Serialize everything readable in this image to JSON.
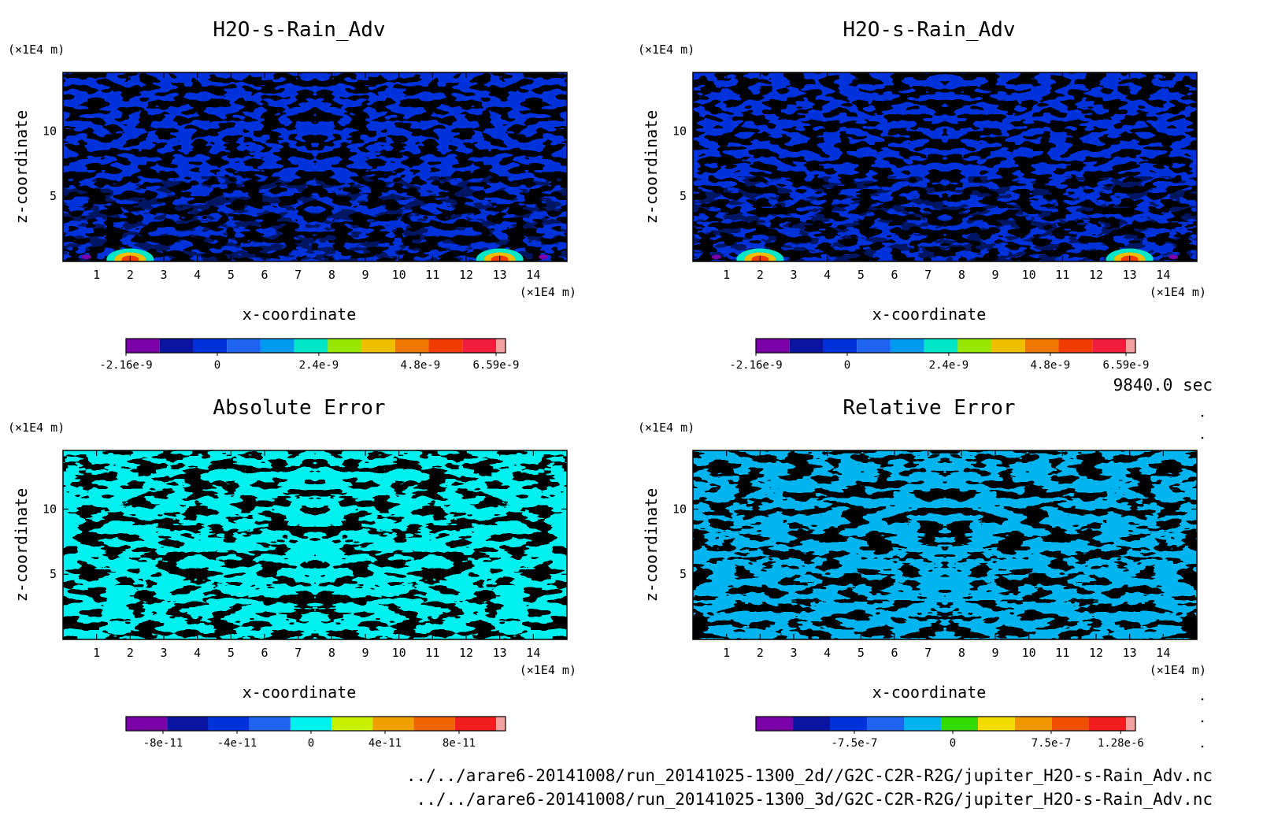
{
  "time_label": "9840.0 sec",
  "files": [
    "../../arare6-20141008/run_20141025-1300_2d//G2C-C2R-R2G/jupiter_H2O-s-Rain_Adv.nc",
    "../../arare6-20141008/run_20141025-1300_3d/G2C-C2R-R2G/jupiter_H2O-s-Rain_Adv.nc"
  ],
  "chart_data": [
    {
      "type": "heatmap",
      "title": "H2O-s-Rain_Adv",
      "xlabel": "x-coordinate",
      "ylabel": "z-coordinate",
      "x_unit": "(×1E4 m)",
      "y_unit": "(×1E4 m)",
      "xlim": [
        0,
        15
      ],
      "ylim": [
        0,
        14.5
      ],
      "x_ticks": [
        1,
        2,
        3,
        4,
        5,
        6,
        7,
        8,
        9,
        10,
        11,
        12,
        13,
        14
      ],
      "y_ticks": [
        5,
        10
      ],
      "pattern": "mirror-symmetric blue field with two red peaks near z=0 at x≈2 and x≈13",
      "colorbar": {
        "colors": [
          "#7a00a8",
          "#0a14a0",
          "#0032dc",
          "#1e64f0",
          "#009bf0",
          "#00e6c8",
          "#96e600",
          "#f0be00",
          "#f07800",
          "#f03c00",
          "#f01e3c",
          "#f5a0a0"
        ],
        "labels": [
          "-2.16e-9",
          "0",
          "2.4e-9",
          "4.8e-9",
          "6.59e-9"
        ],
        "label_positions": [
          -2.16e-09,
          0,
          2.4e-09,
          4.8e-09,
          6.59e-09
        ],
        "range": [
          -2.16e-09,
          6.59e-09
        ]
      },
      "legend_position": "bottom"
    },
    {
      "type": "heatmap",
      "title": "H2O-s-Rain_Adv",
      "xlabel": "x-coordinate",
      "ylabel": "z-coordinate",
      "x_unit": "(×1E4 m)",
      "y_unit": "(×1E4 m)",
      "xlim": [
        0,
        15
      ],
      "ylim": [
        0,
        14.5
      ],
      "x_ticks": [
        1,
        2,
        3,
        4,
        5,
        6,
        7,
        8,
        9,
        10,
        11,
        12,
        13,
        14
      ],
      "y_ticks": [
        5,
        10
      ],
      "pattern": "mirror-symmetric blue field with two red peaks near z=0 at x≈2 and x≈13",
      "colorbar": {
        "colors": [
          "#7a00a8",
          "#0a14a0",
          "#0032dc",
          "#1e64f0",
          "#009bf0",
          "#00e6c8",
          "#96e600",
          "#f0be00",
          "#f07800",
          "#f03c00",
          "#f01e3c",
          "#f5a0a0"
        ],
        "labels": [
          "-2.16e-9",
          "0",
          "2.4e-9",
          "4.8e-9",
          "6.59e-9"
        ],
        "label_positions": [
          -2.16e-09,
          0,
          2.4e-09,
          4.8e-09,
          6.59e-09
        ],
        "range": [
          -2.16e-09,
          6.59e-09
        ]
      },
      "legend_position": "bottom"
    },
    {
      "type": "heatmap",
      "title": "Absolute Error",
      "xlabel": "x-coordinate",
      "ylabel": "z-coordinate",
      "x_unit": "(×1E4 m)",
      "y_unit": "(×1E4 m)",
      "xlim": [
        0,
        15
      ],
      "ylim": [
        0,
        14.5
      ],
      "x_ticks": [
        1,
        2,
        3,
        4,
        5,
        6,
        7,
        8,
        9,
        10,
        11,
        12,
        13,
        14
      ],
      "y_ticks": [
        5,
        10
      ],
      "pattern": "interleaved cyan and yellow-green bands",
      "colorbar": {
        "colors": [
          "#7a00a8",
          "#0a14a0",
          "#0032dc",
          "#1e64f0",
          "#00f0f0",
          "#c8f000",
          "#f0a000",
          "#f06400",
          "#f01e1e",
          "#f5a0a0"
        ],
        "labels": [
          "-8e-11",
          "-4e-11",
          "0",
          "4e-11",
          "8e-11"
        ],
        "label_positions": [
          -8e-11,
          -4e-11,
          0,
          4e-11,
          8e-11
        ],
        "range": [
          -1e-10,
          1e-10
        ]
      },
      "legend_position": "bottom"
    },
    {
      "type": "heatmap",
      "title": "Relative Error",
      "xlabel": "x-coordinate",
      "ylabel": "z-coordinate",
      "x_unit": "(×1E4 m)",
      "y_unit": "(×1E4 m)",
      "xlim": [
        0,
        15
      ],
      "ylim": [
        0,
        14.5
      ],
      "x_ticks": [
        1,
        2,
        3,
        4,
        5,
        6,
        7,
        8,
        9,
        10,
        11,
        12,
        13,
        14
      ],
      "y_ticks": [
        5,
        10
      ],
      "pattern": "interleaved light-blue and green bands",
      "colorbar": {
        "colors": [
          "#7a00a8",
          "#0a14a0",
          "#0032dc",
          "#1e64f0",
          "#00b4f0",
          "#32dc00",
          "#f0dc00",
          "#f09600",
          "#f05000",
          "#f01e1e",
          "#f5a0a0"
        ],
        "labels": [
          "-7.5e-7",
          "0",
          "7.5e-7",
          "1.28e-6"
        ],
        "label_positions": [
          -7.5e-07,
          0,
          7.5e-07,
          1.28e-06
        ],
        "range": [
          -1.5e-06,
          1.32e-06
        ]
      },
      "legend_position": "bottom"
    }
  ]
}
